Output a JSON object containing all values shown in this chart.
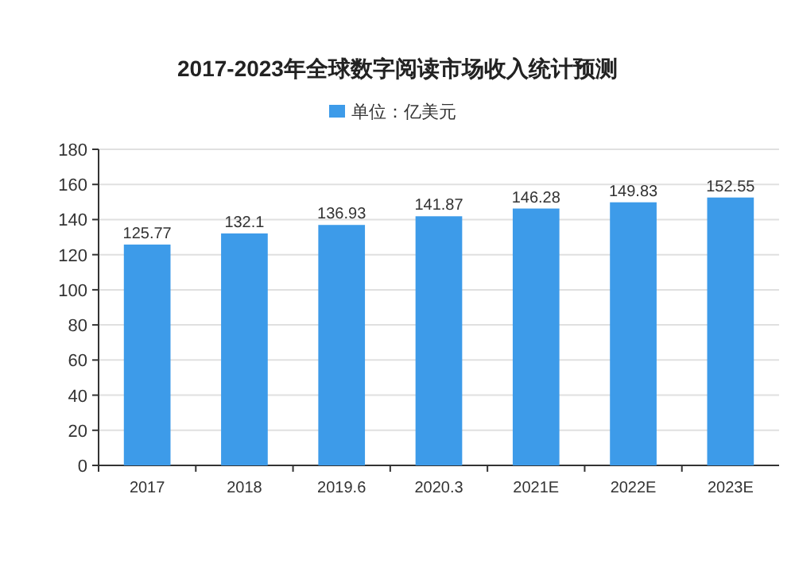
{
  "chart_data": {
    "type": "bar",
    "title": "2017-2023年全球数字阅读市场收入统计预测",
    "categories": [
      "2017",
      "2018",
      "2019.6",
      "2020.3",
      "2021E",
      "2022E",
      "2023E"
    ],
    "series": [
      {
        "name": "单位：亿美元",
        "color": "#3d9be9",
        "values": [
          125.77,
          132.1,
          136.93,
          141.87,
          146.28,
          149.83,
          152.55
        ]
      }
    ],
    "ylim": [
      0,
      180
    ],
    "yticks": [
      0,
      20,
      40,
      60,
      80,
      100,
      120,
      140,
      160,
      180
    ],
    "data_labels": true,
    "grid": "y",
    "legend": "top"
  }
}
